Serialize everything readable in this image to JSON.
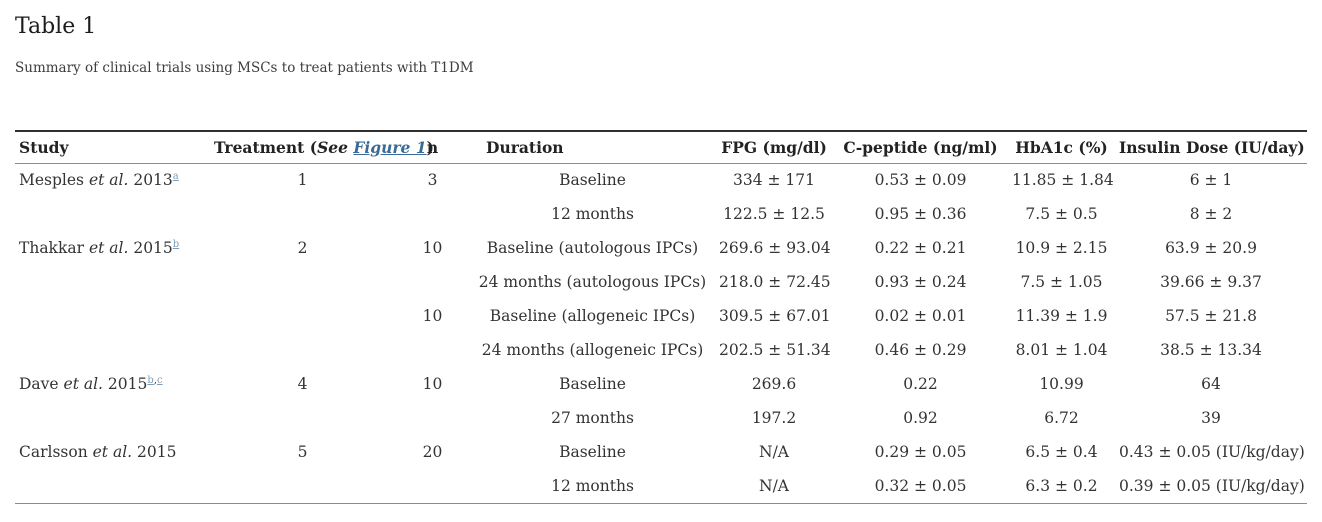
{
  "page": {
    "title": "Table 1",
    "subtitle": "Summary of clinical trials using MSCs to treat patients with T1DM"
  },
  "colors": {
    "text": "#333333",
    "figure_link_blue": "#3a6b96",
    "footnote_link_blue": "#7b9cb8"
  },
  "table": {
    "headers": {
      "study": "Study",
      "treatment_prefix": "Treatment (",
      "treatment_see": "See",
      "figure_link": "Figure 1",
      "treatment_suffix": ")",
      "n": "n",
      "duration": "Duration",
      "fpg": "FPG (mg/dl)",
      "cpeptide": "C-peptide (ng/ml)",
      "hba1c": "HbA1c (%)",
      "insulin": "Insulin Dose (IU/day)"
    },
    "rows": [
      {
        "study": {
          "name": "Mesples ",
          "etal": "et al.",
          "year": " 2013",
          "sups": [
            "a"
          ]
        },
        "treatment": "1",
        "n": "3",
        "duration": "Baseline",
        "fpg": "334 ± 171",
        "cpeptide": "0.53 ± 0.09",
        "hba1c": "11.85 ± 1.84",
        "insulin": "6 ± 1"
      },
      {
        "duration": "12 months",
        "fpg": "122.5 ± 12.5",
        "cpeptide": "0.95 ± 0.36",
        "hba1c": "7.5 ± 0.5",
        "insulin": "8 ± 2"
      },
      {
        "study": {
          "name": "Thakkar ",
          "etal": "et al.",
          "year": " 2015",
          "sups": [
            "b"
          ]
        },
        "treatment": "2",
        "n": "10",
        "duration": "Baseline (autologous IPCs)",
        "fpg": "269.6 ± 93.04",
        "cpeptide": "0.22 ± 0.21",
        "hba1c": "10.9 ± 2.15",
        "insulin": "63.9 ± 20.9"
      },
      {
        "duration": "24 months (autologous IPCs)",
        "fpg": "218.0 ± 72.45",
        "cpeptide": "0.93 ± 0.24",
        "hba1c": "7.5 ± 1.05",
        "insulin": "39.66 ± 9.37"
      },
      {
        "n": "10",
        "duration": "Baseline (allogeneic IPCs)",
        "fpg": "309.5 ± 67.01",
        "cpeptide": "0.02 ± 0.01",
        "hba1c": "11.39 ± 1.9",
        "insulin": "57.5 ± 21.8"
      },
      {
        "duration": "24 months (allogeneic IPCs)",
        "fpg": "202.5 ± 51.34",
        "cpeptide": "0.46 ± 0.29",
        "hba1c": "8.01 ± 1.04",
        "insulin": "38.5 ± 13.34"
      },
      {
        "study": {
          "name": "Dave ",
          "etal": "et al.",
          "year": " 2015",
          "sups": [
            "b",
            "c"
          ]
        },
        "treatment": "4",
        "n": "10",
        "duration": "Baseline",
        "fpg": "269.6",
        "cpeptide": "0.22",
        "hba1c": "10.99",
        "insulin": "64"
      },
      {
        "duration": "27 months",
        "fpg": "197.2",
        "cpeptide": "0.92",
        "hba1c": "6.72",
        "insulin": "39"
      },
      {
        "study": {
          "name": "Carlsson ",
          "etal": "et al.",
          "year": " 2015",
          "sups": []
        },
        "treatment": "5",
        "n": "20",
        "duration": "Baseline",
        "fpg": "N/A",
        "cpeptide": "0.29 ± 0.05",
        "hba1c": "6.5 ± 0.4",
        "insulin": "0.43 ± 0.05 (IU/kg/day)"
      },
      {
        "duration": "12 months",
        "fpg": "N/A",
        "cpeptide": "0.32 ± 0.05",
        "hba1c": "6.3 ± 0.2",
        "insulin": "0.39 ± 0.05 (IU/kg/day)"
      }
    ]
  }
}
